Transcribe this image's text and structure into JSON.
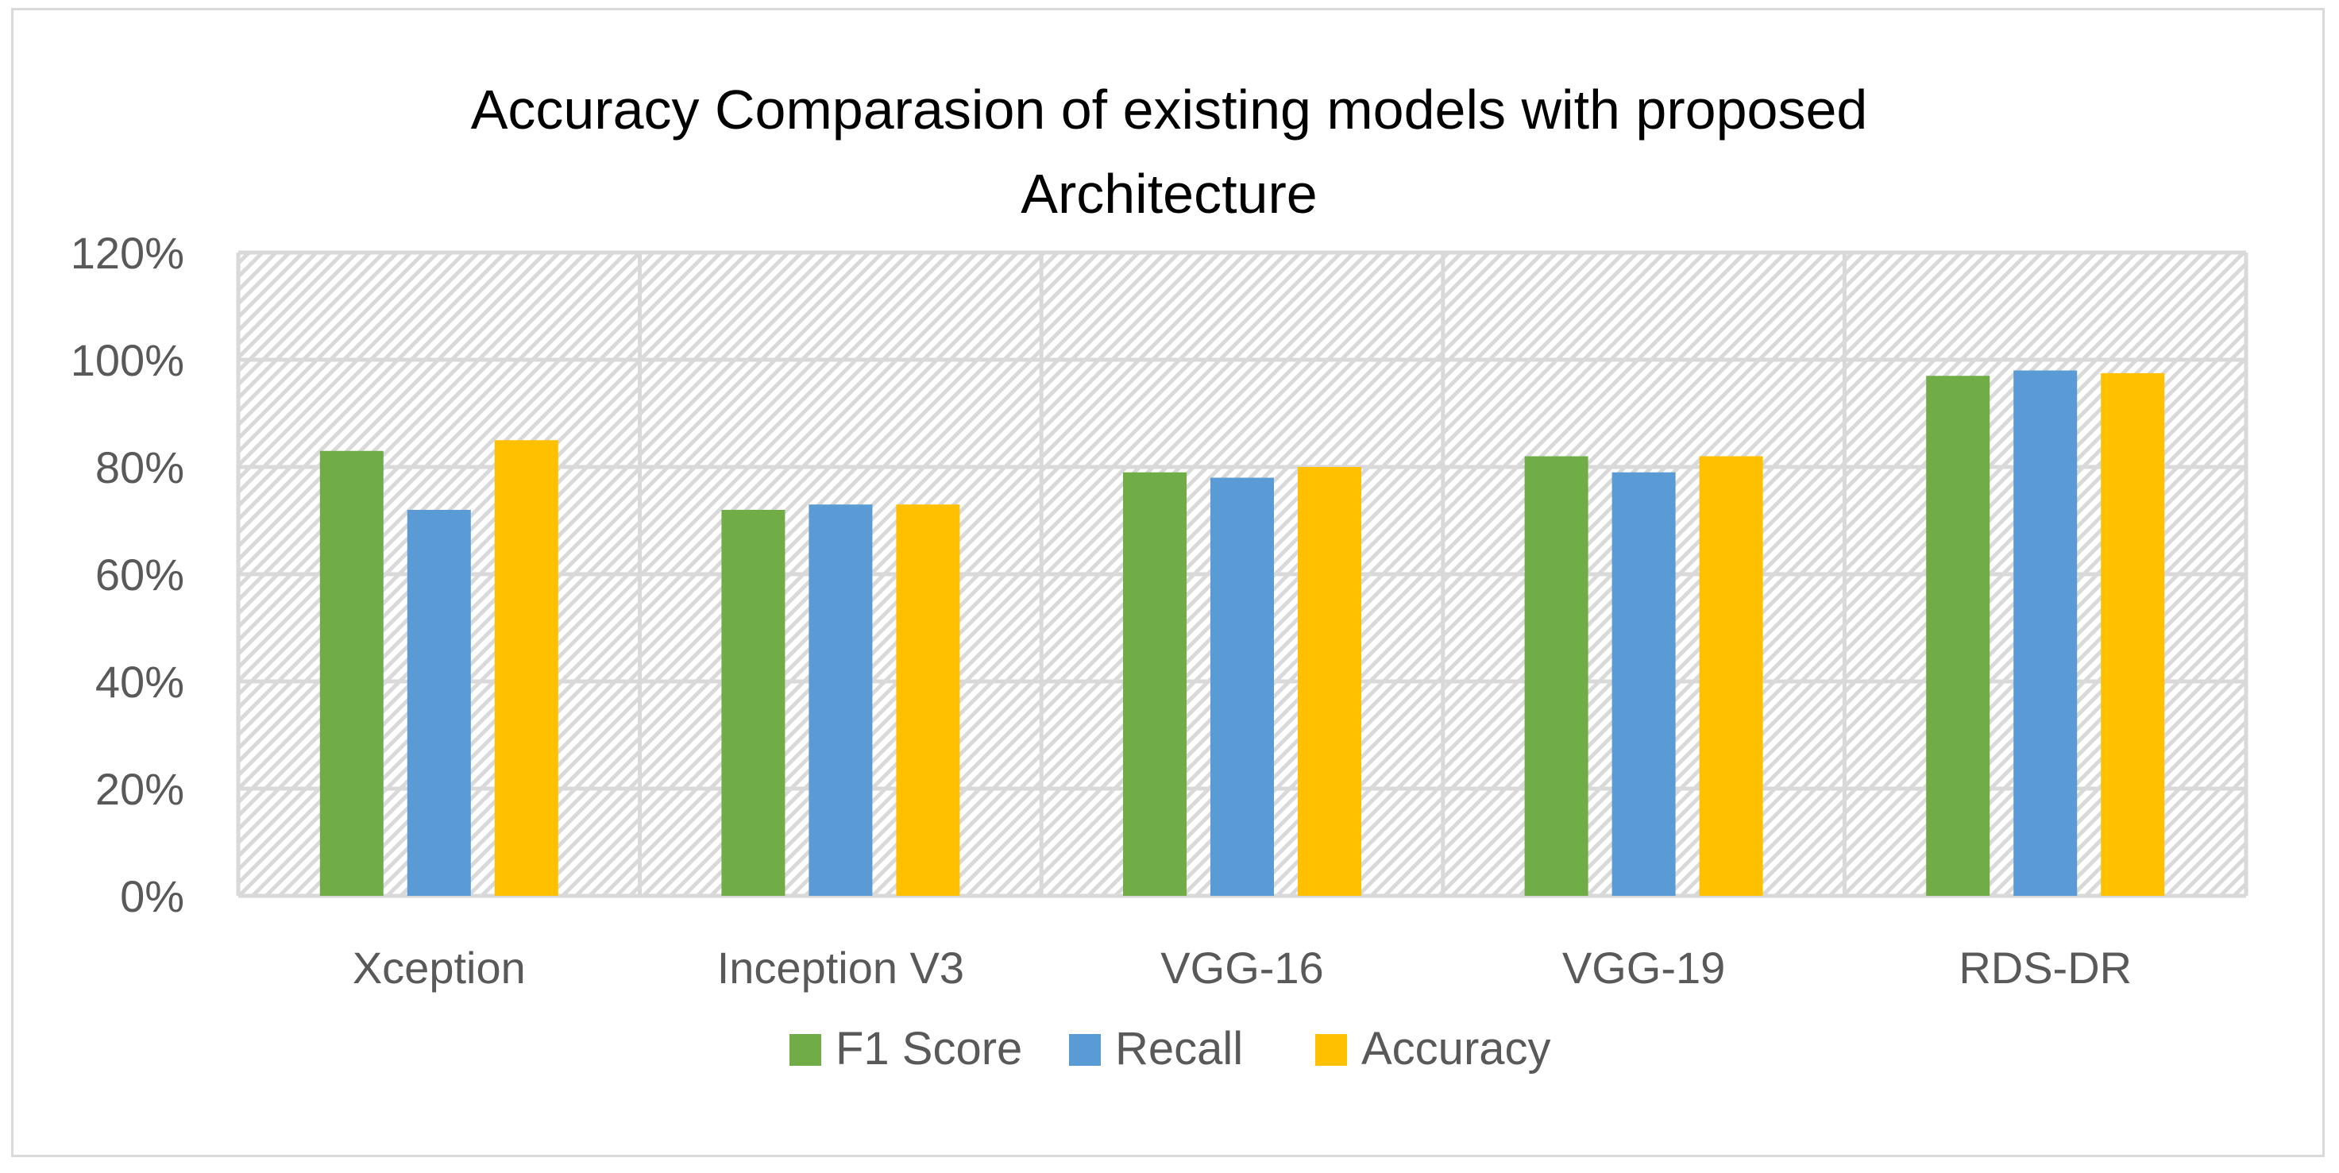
{
  "chart_data": {
    "type": "bar",
    "title": "Accuracy Comparasion of existing models with proposed Architecture",
    "title_lines": [
      "Accuracy Comparasion of existing models with proposed",
      "Architecture"
    ],
    "categories": [
      "Xception",
      "Inception V3",
      "VGG-16",
      "VGG-19",
      "RDS-DR"
    ],
    "series": [
      {
        "name": "F1 Score",
        "color": "#70ad47",
        "values": [
          0.83,
          0.72,
          0.79,
          0.82,
          0.97
        ]
      },
      {
        "name": "Recall",
        "color": "#5b9bd5",
        "values": [
          0.72,
          0.73,
          0.78,
          0.79,
          0.98
        ]
      },
      {
        "name": "Accuracy",
        "color": "#ffc000",
        "values": [
          0.85,
          0.73,
          0.8,
          0.82,
          0.975
        ]
      }
    ],
    "y_ticks": [
      "0%",
      "20%",
      "40%",
      "60%",
      "80%",
      "100%",
      "120%"
    ],
    "ylim": [
      0,
      1.2
    ],
    "grid": true,
    "plot_background": "hatched light gray",
    "legend_position": "bottom"
  }
}
